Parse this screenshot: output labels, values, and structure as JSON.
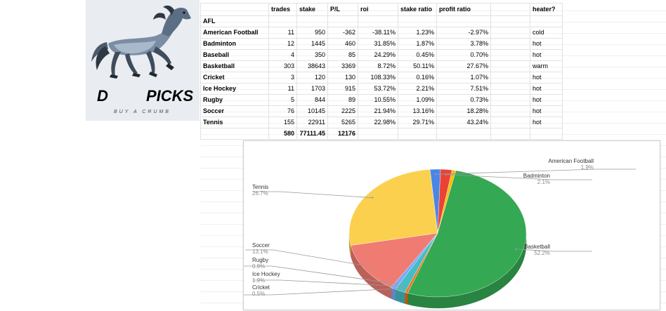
{
  "sheet": {
    "headers": [
      "",
      "trades",
      "stake",
      "P/L",
      "roi",
      "stake ratio",
      "profit ratio",
      "",
      "heater?"
    ],
    "rows": [
      [
        "AFL",
        "",
        "",
        "",
        "",
        "",
        "",
        "",
        ""
      ],
      [
        "American Football",
        "11",
        "950",
        "-362",
        "-38.11%",
        "1.23%",
        "-2.97%",
        "",
        "cold"
      ],
      [
        "Badminton",
        "12",
        "1445",
        "460",
        "31.85%",
        "1.87%",
        "3.78%",
        "",
        "hot"
      ],
      [
        "Baseball",
        "4",
        "350",
        "85",
        "24.29%",
        "0.45%",
        "0.70%",
        "",
        "hot"
      ],
      [
        "Basketball",
        "303",
        "38643",
        "3369",
        "8.72%",
        "50.11%",
        "27.67%",
        "",
        "warm"
      ],
      [
        "Cricket",
        "3",
        "120",
        "130",
        "108.33%",
        "0.16%",
        "1.07%",
        "",
        "hot"
      ],
      [
        "Ice Hockey",
        "11",
        "1703",
        "915",
        "53.72%",
        "2.21%",
        "7.51%",
        "",
        "hot"
      ],
      [
        "Rugby",
        "5",
        "844",
        "89",
        "10.55%",
        "1.09%",
        "0.73%",
        "",
        "hot"
      ],
      [
        "Soccer",
        "76",
        "10145",
        "2225",
        "21.94%",
        "13.16%",
        "18.28%",
        "",
        "hot"
      ],
      [
        "Tennis",
        "155",
        "22911",
        "5265",
        "22.98%",
        "29.71%",
        "43.24%",
        "",
        "hot"
      ]
    ],
    "totals": [
      "",
      "580",
      "77111.45",
      "12176",
      "",
      "",
      "",
      "",
      ""
    ]
  },
  "logo": {
    "letter_left": "D",
    "letter_right": "PICKS",
    "tagline": "BUY A CRUMB"
  },
  "chart_data": {
    "type": "pie",
    "style": "3d",
    "title": "",
    "slices": [
      {
        "label": "American Football",
        "percent": 1.9,
        "color": "#4a86e8"
      },
      {
        "label": "Badminton",
        "percent": 2.1,
        "color": "#ea4335"
      },
      {
        "label": "Baseball",
        "percent": 0.7,
        "color": "#fbbc04"
      },
      {
        "label": "Basketball",
        "percent": 52.2,
        "color": "#34a853"
      },
      {
        "label": "Cricket",
        "percent": 0.5,
        "color": "#ff6d01"
      },
      {
        "label": "Ice Hockey",
        "percent": 1.9,
        "color": "#46bdc6"
      },
      {
        "label": "Rugby",
        "percent": 0.9,
        "color": "#7baaf7"
      },
      {
        "label": "Soccer",
        "percent": 13.1,
        "color": "#f07b72"
      },
      {
        "label": "Tennis",
        "percent": 26.7,
        "color": "#fcd04f"
      }
    ],
    "labels": [
      {
        "name": "American Football",
        "pct": "1.9%"
      },
      {
        "name": "Badminton",
        "pct": "2.1%"
      },
      {
        "name": "Basketball",
        "pct": "52.2%"
      },
      {
        "name": "Tennis",
        "pct": "26.7%"
      },
      {
        "name": "Soccer",
        "pct": "13.1%"
      },
      {
        "name": "Rugby",
        "pct": "0.9%"
      },
      {
        "name": "Ice Hockey",
        "pct": "1.9%"
      },
      {
        "name": "Cricket",
        "pct": "0.5%"
      }
    ]
  }
}
